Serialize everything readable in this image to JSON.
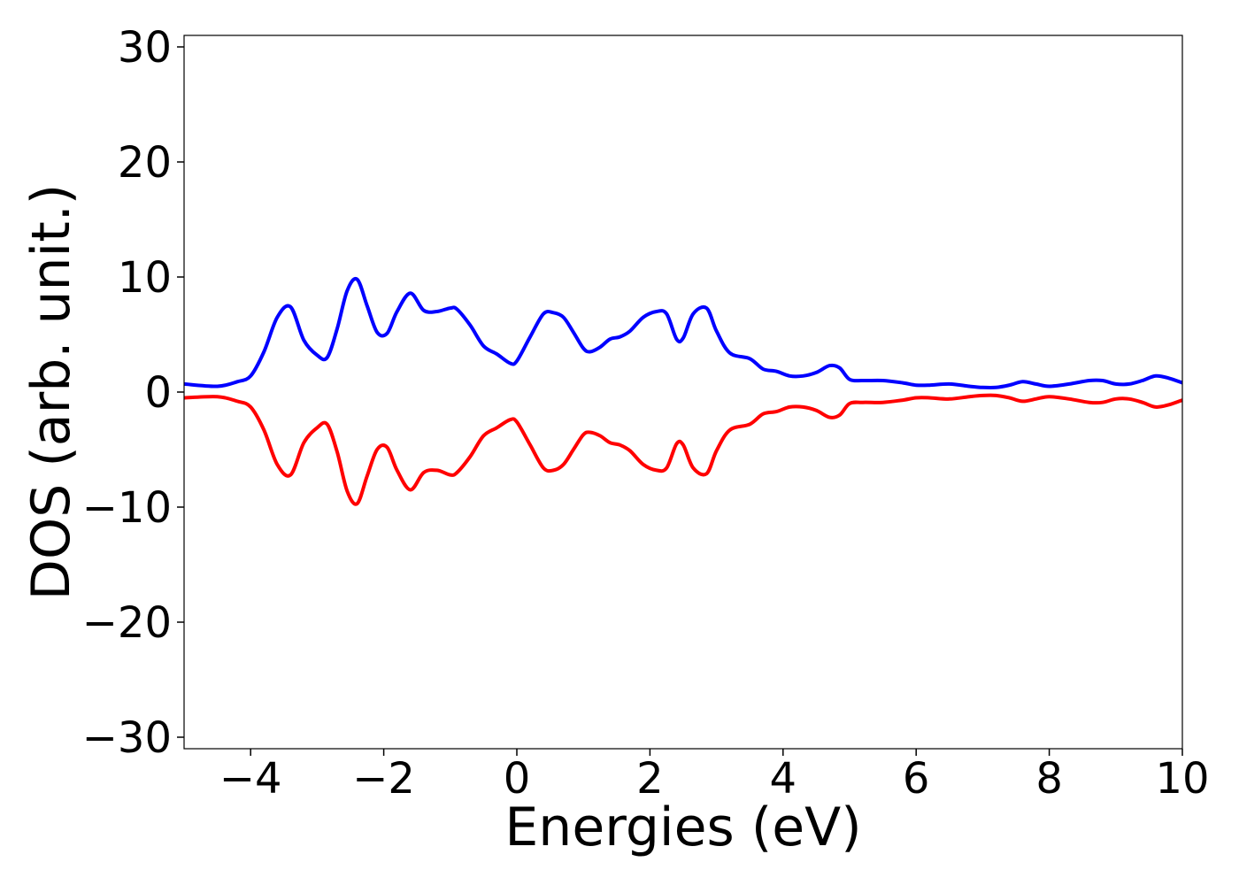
{
  "chart_data": {
    "type": "line",
    "title": "",
    "xlabel": "Energies (eV)",
    "ylabel": "DOS (arb. unit.)",
    "xlim": [
      -5,
      10
    ],
    "ylim": [
      -31,
      31
    ],
    "xticks": [
      -4,
      -2,
      0,
      2,
      4,
      6,
      8,
      10
    ],
    "xtick_labels": [
      "−4",
      "−2",
      "0",
      "2",
      "4",
      "6",
      "8",
      "10"
    ],
    "yticks": [
      -30,
      -20,
      -10,
      0,
      10,
      20,
      30
    ],
    "ytick_labels": [
      "−30",
      "−20",
      "−10",
      "0",
      "10",
      "20",
      "30"
    ],
    "grid": false,
    "legend": "none",
    "series": [
      {
        "color": "#0000ff",
        "x": [
          -5,
          -4.5,
          -4.2,
          -4.0,
          -3.8,
          -3.6,
          -3.4,
          -3.2,
          -3.0,
          -2.85,
          -2.7,
          -2.55,
          -2.4,
          -2.25,
          -2.1,
          -1.95,
          -1.8,
          -1.6,
          -1.4,
          -1.2,
          -1.0,
          -0.9,
          -0.7,
          -0.5,
          -0.3,
          -0.1,
          0.0,
          0.2,
          0.4,
          0.55,
          0.7,
          0.85,
          1.0,
          1.1,
          1.25,
          1.4,
          1.55,
          1.7,
          1.9,
          2.1,
          2.25,
          2.4,
          2.5,
          2.65,
          2.85,
          3.0,
          3.2,
          3.5,
          3.7,
          3.9,
          4.1,
          4.3,
          4.5,
          4.7,
          4.85,
          5.0,
          5.2,
          5.5,
          5.8,
          6.0,
          6.2,
          6.5,
          6.8,
          7.0,
          7.2,
          7.4,
          7.6,
          7.8,
          8.0,
          8.3,
          8.6,
          8.8,
          9.0,
          9.2,
          9.4,
          9.6,
          9.8,
          10.0
        ],
        "y": [
          0.7,
          0.5,
          0.9,
          1.4,
          3.5,
          6.5,
          7.4,
          4.5,
          3.2,
          3.0,
          5.5,
          8.8,
          9.8,
          7.5,
          5.2,
          5.1,
          7.0,
          8.6,
          7.1,
          7.0,
          7.3,
          7.2,
          5.8,
          4.0,
          3.3,
          2.5,
          2.7,
          4.8,
          6.8,
          6.9,
          6.5,
          5.2,
          3.8,
          3.5,
          3.9,
          4.6,
          4.8,
          5.3,
          6.5,
          7.0,
          6.8,
          4.6,
          4.7,
          6.8,
          7.3,
          5.3,
          3.4,
          2.9,
          2.0,
          1.8,
          1.4,
          1.4,
          1.7,
          2.3,
          2.1,
          1.1,
          1.0,
          1.0,
          0.8,
          0.6,
          0.6,
          0.7,
          0.5,
          0.4,
          0.4,
          0.6,
          0.9,
          0.7,
          0.5,
          0.7,
          1.0,
          1.0,
          0.7,
          0.7,
          1.0,
          1.4,
          1.2,
          0.8
        ]
      },
      {
        "color": "#ff0000",
        "x": [
          -5,
          -4.5,
          -4.2,
          -4.0,
          -3.8,
          -3.6,
          -3.4,
          -3.2,
          -3.0,
          -2.85,
          -2.7,
          -2.55,
          -2.4,
          -2.25,
          -2.1,
          -1.95,
          -1.8,
          -1.6,
          -1.4,
          -1.2,
          -1.0,
          -0.9,
          -0.7,
          -0.5,
          -0.3,
          -0.1,
          0.0,
          0.2,
          0.4,
          0.55,
          0.7,
          0.85,
          1.0,
          1.1,
          1.25,
          1.4,
          1.55,
          1.7,
          1.9,
          2.1,
          2.25,
          2.4,
          2.5,
          2.65,
          2.85,
          3.0,
          3.2,
          3.5,
          3.7,
          3.9,
          4.1,
          4.3,
          4.5,
          4.7,
          4.85,
          5.0,
          5.2,
          5.5,
          5.8,
          6.0,
          6.2,
          6.5,
          6.8,
          7.0,
          7.2,
          7.4,
          7.6,
          7.8,
          8.0,
          8.3,
          8.6,
          8.8,
          9.0,
          9.2,
          9.4,
          9.6,
          9.8,
          10.0
        ],
        "y": [
          -0.5,
          -0.4,
          -0.8,
          -1.3,
          -3.3,
          -6.3,
          -7.2,
          -4.4,
          -3.1,
          -2.8,
          -5.2,
          -8.6,
          -9.7,
          -7.3,
          -5.0,
          -4.8,
          -6.8,
          -8.5,
          -7.0,
          -6.8,
          -7.2,
          -7.0,
          -5.6,
          -3.8,
          -3.1,
          -2.4,
          -2.6,
          -4.6,
          -6.6,
          -6.8,
          -6.3,
          -5.0,
          -3.7,
          -3.5,
          -3.8,
          -4.4,
          -4.6,
          -5.1,
          -6.3,
          -6.8,
          -6.6,
          -4.5,
          -4.6,
          -6.6,
          -7.1,
          -5.1,
          -3.3,
          -2.8,
          -1.9,
          -1.7,
          -1.3,
          -1.3,
          -1.6,
          -2.2,
          -2.0,
          -1.0,
          -0.9,
          -0.9,
          -0.7,
          -0.5,
          -0.5,
          -0.6,
          -0.4,
          -0.3,
          -0.3,
          -0.5,
          -0.8,
          -0.6,
          -0.4,
          -0.6,
          -0.9,
          -0.9,
          -0.6,
          -0.6,
          -0.9,
          -1.3,
          -1.1,
          -0.7
        ]
      }
    ]
  }
}
